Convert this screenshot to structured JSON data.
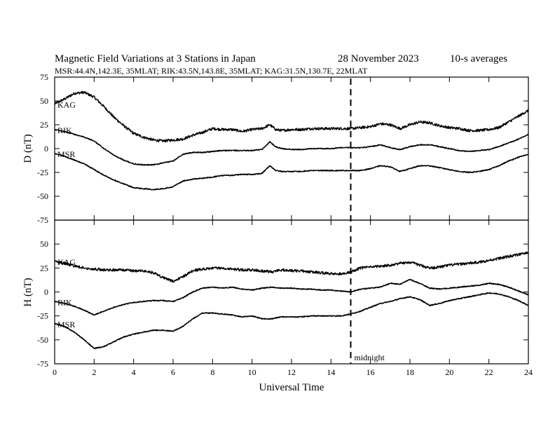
{
  "header": {
    "title": "Magnetic Field Variations at 3 Stations in Japan",
    "date": "28 November 2023",
    "averaging": "10-s averages",
    "subtitle": "MSR:44.4N,142.3E, 35MLAT;  RIK:43.5N,143.8E, 35MLAT;  KAG:31.5N,130.7E, 22MLAT"
  },
  "chart_data": [
    {
      "type": "line",
      "panel": "D",
      "ylabel": "D (nT)",
      "xlim": [
        0,
        24
      ],
      "ylim": [
        -75,
        75
      ],
      "x_ticks": [
        0,
        2,
        4,
        6,
        8,
        10,
        12,
        14,
        16,
        18,
        20,
        22,
        24
      ],
      "y_ticks": [
        -75,
        -50,
        -25,
        0,
        25,
        50,
        75
      ],
      "grid": false,
      "x": [
        0,
        0.5,
        1,
        1.5,
        2,
        2.5,
        3,
        3.5,
        4,
        4.5,
        5,
        5.5,
        6,
        6.5,
        7,
        7.5,
        8,
        8.5,
        9,
        9.5,
        10,
        10.5,
        10.9,
        11.2,
        11.5,
        12,
        12.5,
        13,
        13.5,
        14,
        14.5,
        15,
        15.5,
        16,
        16.5,
        17,
        17.5,
        18,
        18.5,
        19,
        19.5,
        20,
        20.5,
        21,
        21.5,
        22,
        22.5,
        23,
        23.5,
        24
      ],
      "series": [
        {
          "name": "KAG",
          "values": [
            47,
            52,
            58,
            59,
            54,
            44,
            33,
            24,
            16,
            12,
            9,
            8,
            9,
            10,
            14,
            17,
            21,
            20,
            20,
            18,
            20,
            21,
            25,
            20,
            19,
            20,
            20,
            21,
            21,
            21,
            21,
            21,
            22,
            23,
            26,
            25,
            21,
            25,
            28,
            27,
            24,
            22,
            21,
            19,
            19,
            20,
            22,
            28,
            34,
            40
          ]
        },
        {
          "name": "RIK",
          "values": [
            20,
            18,
            15,
            12,
            8,
            0,
            -7,
            -12,
            -16,
            -17,
            -17,
            -15,
            -13,
            -6,
            -4,
            -4,
            -3,
            -2,
            -2,
            -2,
            -2,
            -1,
            7,
            2,
            0,
            -1,
            -1,
            0,
            0,
            0,
            1,
            1,
            1,
            2,
            4,
            1,
            -1,
            2,
            4,
            4,
            2,
            0,
            -2,
            -3,
            -2,
            -1,
            2,
            6,
            10,
            15
          ]
        },
        {
          "name": "MSR",
          "values": [
            -5,
            -8,
            -12,
            -16,
            -22,
            -28,
            -33,
            -37,
            -41,
            -42,
            -43,
            -42,
            -40,
            -34,
            -32,
            -31,
            -30,
            -28,
            -28,
            -27,
            -27,
            -26,
            -18,
            -23,
            -24,
            -24,
            -24,
            -23,
            -23,
            -23,
            -23,
            -23,
            -23,
            -21,
            -18,
            -19,
            -24,
            -21,
            -18,
            -18,
            -20,
            -22,
            -24,
            -25,
            -24,
            -22,
            -18,
            -13,
            -9,
            -6
          ]
        }
      ]
    },
    {
      "type": "line",
      "panel": "H",
      "ylabel": "H (nT)",
      "xlabel": "Universal Time",
      "xlim": [
        0,
        24
      ],
      "ylim": [
        -75,
        75
      ],
      "x_ticks": [
        0,
        2,
        4,
        6,
        8,
        10,
        12,
        14,
        16,
        18,
        20,
        22,
        24
      ],
      "y_ticks": [
        -75,
        -50,
        -25,
        0,
        25,
        50,
        75
      ],
      "grid": false,
      "x": [
        0,
        0.5,
        1,
        1.5,
        2,
        2.5,
        3,
        3.5,
        4,
        4.5,
        5,
        5.5,
        6,
        6.5,
        7,
        7.5,
        8,
        8.5,
        9,
        9.5,
        10,
        10.5,
        11,
        11.5,
        12,
        12.5,
        13,
        13.5,
        14,
        14.5,
        15,
        15.5,
        16,
        16.5,
        17,
        17.5,
        18,
        18.5,
        19,
        19.5,
        20,
        20.5,
        21,
        21.5,
        22,
        22.5,
        23,
        23.5,
        24
      ],
      "series": [
        {
          "name": "KAG",
          "values": [
            32,
            30,
            27,
            25,
            24,
            23,
            23,
            23,
            22,
            22,
            20,
            15,
            11,
            16,
            22,
            24,
            25,
            25,
            24,
            23,
            23,
            22,
            21,
            23,
            22,
            22,
            21,
            20,
            19,
            19,
            21,
            25,
            26,
            27,
            28,
            30,
            31,
            28,
            25,
            26,
            28,
            29,
            30,
            31,
            33,
            35,
            37,
            39,
            41
          ]
        },
        {
          "name": "RIK",
          "values": [
            -10,
            -12,
            -15,
            -19,
            -24,
            -20,
            -16,
            -13,
            -11,
            -10,
            -9,
            -9,
            -10,
            -6,
            0,
            4,
            5,
            4,
            5,
            3,
            2,
            4,
            5,
            4,
            4,
            3,
            3,
            2,
            2,
            1,
            0,
            3,
            4,
            5,
            9,
            8,
            13,
            9,
            4,
            3,
            4,
            5,
            6,
            7,
            9,
            8,
            5,
            1,
            -3
          ]
        },
        {
          "name": "MSR",
          "values": [
            -33,
            -36,
            -42,
            -50,
            -59,
            -57,
            -52,
            -47,
            -44,
            -42,
            -40,
            -40,
            -41,
            -36,
            -28,
            -22,
            -22,
            -23,
            -24,
            -26,
            -25,
            -28,
            -28,
            -26,
            -26,
            -26,
            -25,
            -25,
            -25,
            -25,
            -23,
            -20,
            -16,
            -12,
            -10,
            -7,
            -5,
            -8,
            -14,
            -12,
            -9,
            -7,
            -5,
            -3,
            -1,
            -2,
            -5,
            -9,
            -14
          ]
        }
      ]
    }
  ],
  "annotation": {
    "marker_x": 15,
    "label": "midnight"
  }
}
